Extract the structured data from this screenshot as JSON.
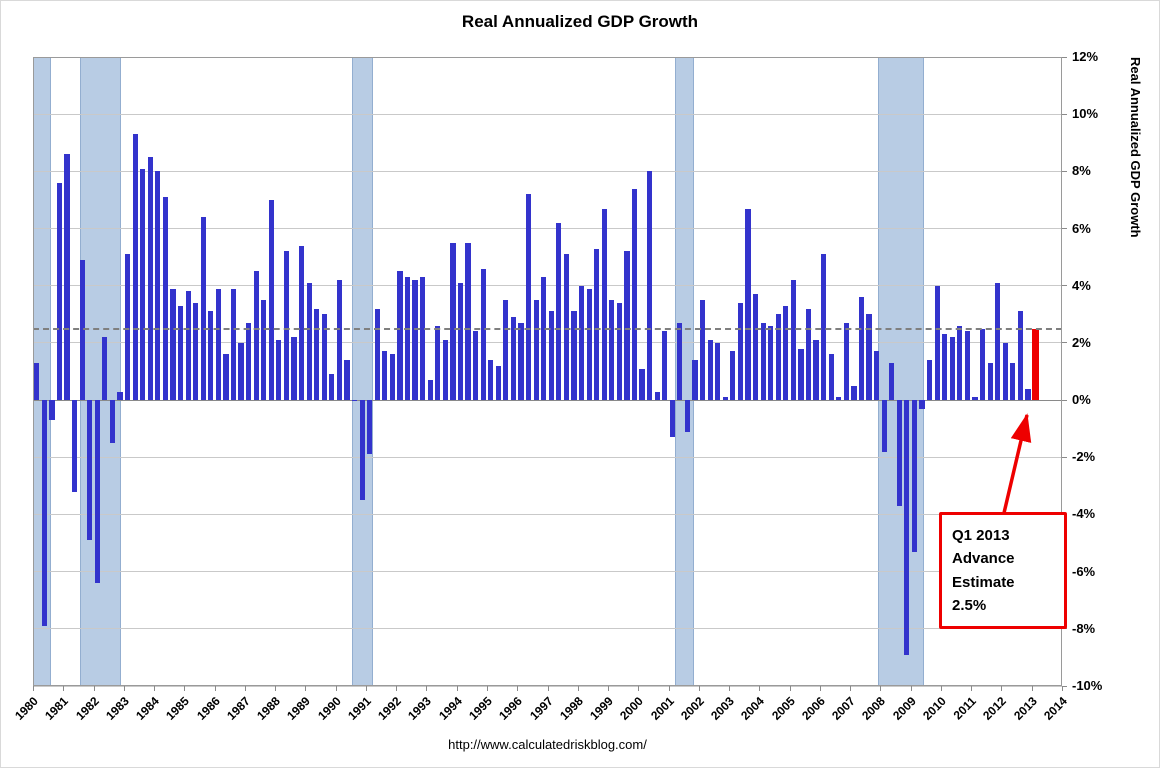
{
  "title": "Real Annualized GDP Growth",
  "footer_url": "http://www.calculatedriskblog.com/",
  "right_axis_title": "Real Annualized GDP Growth",
  "annotation": {
    "lines": [
      "Q1 2013",
      "Advance",
      "Estimate",
      "2.5%"
    ]
  },
  "chart_data": {
    "type": "bar",
    "title": "Real Annualized GDP Growth",
    "period": "quarterly",
    "start": "1980Q1",
    "end": "2013Q1",
    "values": [
      1.3,
      -7.9,
      -0.7,
      7.6,
      8.6,
      -3.2,
      4.9,
      -4.9,
      -6.4,
      2.2,
      -1.5,
      0.3,
      5.1,
      9.3,
      8.1,
      8.5,
      8.0,
      7.1,
      3.9,
      3.3,
      3.8,
      3.4,
      6.4,
      3.1,
      3.9,
      1.6,
      3.9,
      2.0,
      2.7,
      4.5,
      3.5,
      7.0,
      2.1,
      5.2,
      2.2,
      5.4,
      4.1,
      3.2,
      3.0,
      0.9,
      4.2,
      1.4,
      0.0,
      -3.5,
      -1.9,
      3.2,
      1.7,
      1.6,
      4.5,
      4.3,
      4.2,
      4.3,
      0.7,
      2.6,
      2.1,
      5.5,
      4.1,
      5.5,
      2.4,
      4.6,
      1.4,
      1.2,
      3.5,
      2.9,
      2.7,
      7.2,
      3.5,
      4.3,
      3.1,
      6.2,
      5.1,
      3.1,
      4.0,
      3.9,
      5.3,
      6.7,
      3.5,
      3.4,
      5.2,
      7.4,
      1.1,
      8.0,
      0.3,
      2.4,
      -1.3,
      2.7,
      -1.1,
      1.4,
      3.5,
      2.1,
      2.0,
      0.1,
      1.7,
      3.4,
      6.7,
      3.7,
      2.7,
      2.6,
      3.0,
      3.3,
      4.2,
      1.8,
      3.2,
      2.1,
      5.1,
      1.6,
      0.1,
      2.7,
      0.5,
      3.6,
      3.0,
      1.7,
      -1.8,
      1.3,
      -3.7,
      -8.9,
      -5.3,
      -0.3,
      1.4,
      4.0,
      2.3,
      2.2,
      2.6,
      2.4,
      0.1,
      2.5,
      1.3,
      4.1,
      2.0,
      1.3,
      3.1,
      0.4,
      2.5
    ],
    "highlight": {
      "index": 132,
      "label": "Q1 2013 Advance Estimate",
      "value": 2.5,
      "color": "#ee0000"
    },
    "reference_line": {
      "value": 2.5,
      "style": "dashed",
      "color": "#7f7f7f"
    },
    "x_range": [
      1980,
      2014
    ],
    "x_tick_labels": [
      "1980",
      "1981",
      "1982",
      "1983",
      "1984",
      "1985",
      "1986",
      "1987",
      "1988",
      "1989",
      "1990",
      "1991",
      "1992",
      "1993",
      "1994",
      "1995",
      "1996",
      "1997",
      "1998",
      "1999",
      "2000",
      "2001",
      "2002",
      "2003",
      "2004",
      "2005",
      "2006",
      "2007",
      "2008",
      "2009",
      "2010",
      "2011",
      "2012",
      "2013",
      "2014"
    ],
    "ylim": [
      -10,
      12
    ],
    "y_ticks": [
      12,
      10,
      8,
      6,
      4,
      2,
      0,
      -2,
      -4,
      -6,
      -8,
      -10
    ],
    "y_tick_labels": [
      "12%",
      "10%",
      "8%",
      "6%",
      "4%",
      "2%",
      "0%",
      "-2%",
      "-4%",
      "-6%",
      "-8%",
      "-10%"
    ],
    "ylabel": "Real Annualized GDP Growth",
    "bar_color": "#3333cc",
    "grid": true,
    "legend": "none",
    "recession_bands": [
      [
        1980.0,
        1980.6
      ],
      [
        1981.55,
        1982.9
      ],
      [
        1990.55,
        1991.25
      ],
      [
        2001.2,
        2001.85
      ],
      [
        2007.92,
        2009.45
      ]
    ],
    "recession_band_color": "#b8cce4"
  }
}
